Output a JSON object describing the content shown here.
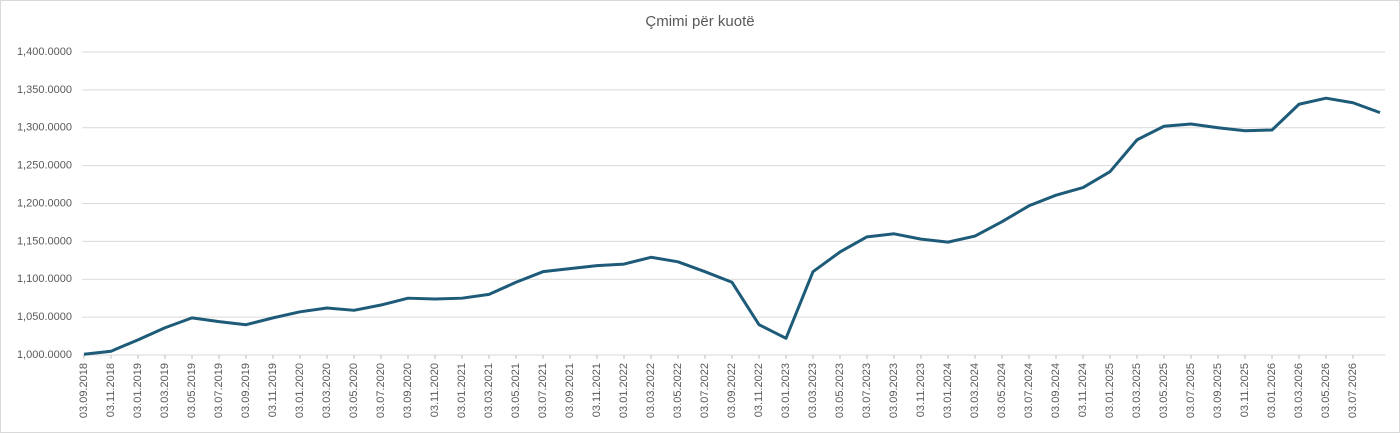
{
  "chart_data": {
    "type": "line",
    "title": "Çmimi për kuotë",
    "categories": [
      "03.09.2018",
      "03.11.2018",
      "03.01.2019",
      "03.03.2019",
      "03.05.2019",
      "03.07.2019",
      "03.09.2019",
      "03.11.2019",
      "03.01.2020",
      "03.03.2020",
      "03.05.2020",
      "03.07.2020",
      "03.09.2020",
      "03.11.2020",
      "03.01.2021",
      "03.03.2021",
      "03.05.2021",
      "03.07.2021",
      "03.09.2021",
      "03.11.2021",
      "03.01.2022",
      "03.03.2022",
      "03.05.2022",
      "03.07.2022",
      "03.09.2022",
      "03.11.2022",
      "03.01.2023",
      "03.03.2023",
      "03.05.2023",
      "03.07.2023",
      "03.09.2023",
      "03.11.2023",
      "03.01.2024",
      "03.03.2024",
      "03.05.2024",
      "03.07.2024",
      "03.09.2024",
      "03.11.2024",
      "03.01.2025",
      "03.03.2025",
      "03.05.2025",
      "03.07.2025",
      "03.09.2025",
      "03.11.2025",
      "03.01.2026",
      "03.03.2026",
      "03.05.2026",
      "03.07.2026",
      null
    ],
    "series": [
      {
        "name": "Çmimi për kuotë",
        "color": "#1d5b78",
        "values": [
          1001,
          1005,
          1020,
          1036,
          1049,
          1044,
          1040,
          1049,
          1057,
          1062,
          1059,
          1066,
          1075,
          1074,
          1075,
          1080,
          1096,
          1110,
          1114,
          1118,
          1120,
          1129,
          1123,
          1110,
          1096,
          1040,
          1022,
          1110,
          1136,
          1156,
          1160,
          1153,
          1149,
          1157,
          1176,
          1197,
          1211,
          1221,
          1242,
          1284,
          1302,
          1305,
          1300,
          1296,
          1297,
          1331,
          1339,
          1333,
          1320
        ]
      }
    ],
    "ylim": [
      1000,
      1400
    ],
    "yticks": [
      {
        "value": 1000,
        "label": "1,000.0000"
      },
      {
        "value": 1050,
        "label": "1,050.0000"
      },
      {
        "value": 1100,
        "label": "1,100.0000"
      },
      {
        "value": 1150,
        "label": "1,150.0000"
      },
      {
        "value": 1200,
        "label": "1,200.0000"
      },
      {
        "value": 1250,
        "label": "1,250.0000"
      },
      {
        "value": 1300,
        "label": "1,300.0000"
      },
      {
        "value": 1350,
        "label": "1,350.0000"
      },
      {
        "value": 1400,
        "label": "1,400.0000"
      }
    ],
    "grid": true
  }
}
